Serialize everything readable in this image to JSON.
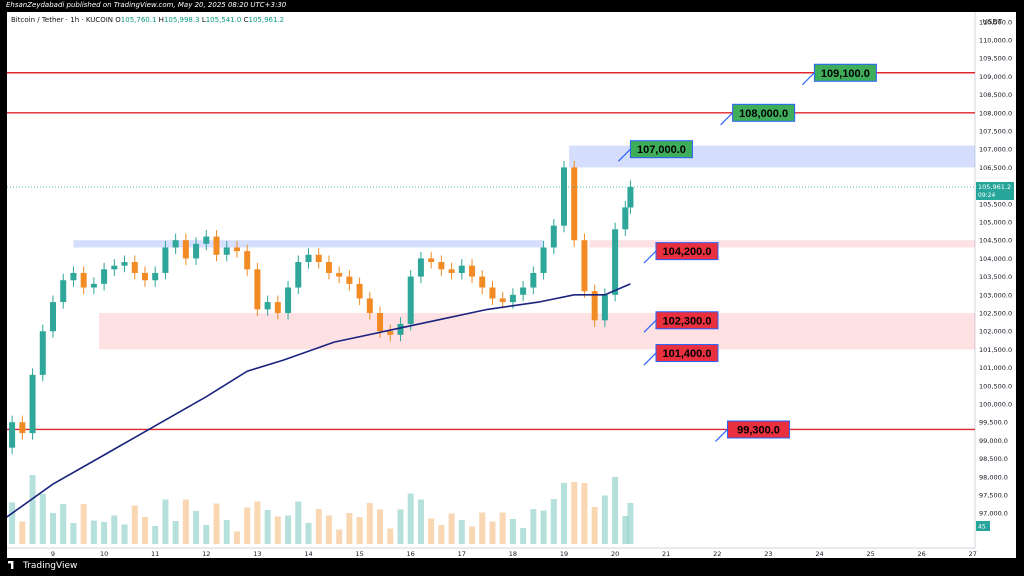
{
  "publisher": "EhsanZeydabadi published on TradingView.com, May 20, 2025 08:20 UTC+3:30",
  "symbol": {
    "name": "Bitcoin / Tether · 1h · KUCOIN",
    "open_label": "O",
    "open": "105,760.1",
    "high_label": "H",
    "high": "105,998.3",
    "low_label": "L",
    "low": "105,541.0",
    "close_label": "C",
    "close": "105,961.2"
  },
  "currency": "USDT",
  "footer": {
    "brand": "TradingView"
  },
  "colors": {
    "resistance_line": "#e0262f",
    "green_label": "#3fae5a",
    "red_label": "#e8303e",
    "label_border": "#2962ff",
    "ma_line": "#1a237e",
    "bull_candle": "#2ea69a",
    "bear_candle": "#f28b24",
    "blue_zone": "rgba(92,124,250,0.25)",
    "red_zone": "rgba(242,54,69,0.15)",
    "price_tag": "#26a69a"
  },
  "chart_data": {
    "type": "candlestick",
    "symbol": "BTCUSDT",
    "timeframe": "1h",
    "exchange": "KUCOIN",
    "y_axis": {
      "ylim": [
        97000,
        111000
      ],
      "ticks": [
        "97,000.0",
        "97,500.0",
        "98,000.0",
        "98,500.0",
        "99,000.0",
        "99,500.0",
        "100,000.0",
        "100,500.0",
        "101,000.0",
        "101,500.0",
        "102,000.0",
        "102,500.0",
        "103,000.0",
        "103,500.0",
        "104,000.0",
        "104,500.0",
        "105,000.0",
        "105,500.0",
        "106,000.0",
        "106,500.0",
        "107,000.0",
        "107,500.0",
        "108,000.0",
        "108,500.0",
        "109,000.0",
        "109,500.0",
        "110,000.0",
        "110,500.0"
      ]
    },
    "x_axis": {
      "ticks": [
        "9",
        "10",
        "11",
        "12",
        "13",
        "14",
        "15",
        "16",
        "17",
        "18",
        "19",
        "20",
        "21",
        "22",
        "23",
        "24",
        "25",
        "26",
        "27"
      ]
    },
    "last_price": {
      "value": "105,961.2",
      "countdown": "09:24"
    },
    "volume_tag": "45",
    "close_series": [
      [
        8.0,
        98800
      ],
      [
        8.2,
        99500
      ],
      [
        8.4,
        99200
      ],
      [
        8.6,
        100800
      ],
      [
        8.8,
        102000
      ],
      [
        9.0,
        102800
      ],
      [
        9.2,
        103400
      ],
      [
        9.4,
        103600
      ],
      [
        9.6,
        103200
      ],
      [
        9.8,
        103300
      ],
      [
        10.0,
        103700
      ],
      [
        10.2,
        103800
      ],
      [
        10.4,
        103900
      ],
      [
        10.6,
        103600
      ],
      [
        10.8,
        103400
      ],
      [
        11.0,
        103600
      ],
      [
        11.2,
        104300
      ],
      [
        11.4,
        104500
      ],
      [
        11.6,
        104000
      ],
      [
        11.8,
        104400
      ],
      [
        12.0,
        104600
      ],
      [
        12.2,
        104100
      ],
      [
        12.4,
        104300
      ],
      [
        12.6,
        104200
      ],
      [
        12.8,
        103700
      ],
      [
        13.0,
        102600
      ],
      [
        13.2,
        102800
      ],
      [
        13.4,
        102500
      ],
      [
        13.6,
        103200
      ],
      [
        13.8,
        103900
      ],
      [
        14.0,
        104100
      ],
      [
        14.2,
        103900
      ],
      [
        14.4,
        103600
      ],
      [
        14.6,
        103500
      ],
      [
        14.8,
        103300
      ],
      [
        15.0,
        102900
      ],
      [
        15.2,
        102500
      ],
      [
        15.4,
        102000
      ],
      [
        15.6,
        101900
      ],
      [
        15.8,
        102200
      ],
      [
        16.0,
        103500
      ],
      [
        16.2,
        104000
      ],
      [
        16.4,
        103900
      ],
      [
        16.6,
        103700
      ],
      [
        16.8,
        103600
      ],
      [
        17.0,
        103800
      ],
      [
        17.2,
        103500
      ],
      [
        17.4,
        103200
      ],
      [
        17.6,
        102900
      ],
      [
        17.8,
        102800
      ],
      [
        18.0,
        103000
      ],
      [
        18.2,
        103200
      ],
      [
        18.4,
        103600
      ],
      [
        18.6,
        104300
      ],
      [
        18.8,
        104900
      ],
      [
        19.0,
        106500
      ],
      [
        19.2,
        104500
      ],
      [
        19.4,
        103100
      ],
      [
        19.6,
        102300
      ],
      [
        19.8,
        103000
      ],
      [
        20.0,
        104800
      ],
      [
        20.2,
        105400
      ],
      [
        20.3,
        105961
      ]
    ],
    "moving_average": [
      [
        8.0,
        96800
      ],
      [
        9.0,
        97800
      ],
      [
        10.0,
        98600
      ],
      [
        11.0,
        99400
      ],
      [
        12.0,
        100200
      ],
      [
        12.8,
        100900
      ],
      [
        13.5,
        101200
      ],
      [
        14.5,
        101700
      ],
      [
        15.5,
        102000
      ],
      [
        16.5,
        102300
      ],
      [
        17.5,
        102600
      ],
      [
        18.5,
        102800
      ],
      [
        19.2,
        103000
      ],
      [
        19.8,
        103000
      ],
      [
        20.3,
        103300
      ]
    ],
    "horizontal_levels": [
      109100,
      108000,
      99300
    ],
    "zones": [
      {
        "color": "blue",
        "from_x": 19.1,
        "to_x": 27.5,
        "low": 106500,
        "high": 107100
      },
      {
        "color": "red",
        "from_x": 19.5,
        "to_x": 27.5,
        "low": 104300,
        "high": 104500
      },
      {
        "color": "red",
        "from_x": 9.9,
        "to_x": 27.5,
        "low": 101500,
        "high": 102500
      },
      {
        "color": "blue",
        "from_x": 9.4,
        "to_x": 18.6,
        "low": 104300,
        "high": 104500
      }
    ],
    "annotations": [
      {
        "text": "109,100.0",
        "value": 109100,
        "style": "green",
        "anchor_x": 23.9
      },
      {
        "text": "108,000.0",
        "value": 108000,
        "style": "green",
        "anchor_x": 22.3
      },
      {
        "text": "107,000.0",
        "value": 107000,
        "style": "green",
        "anchor_x": 20.3
      },
      {
        "text": "104,200.0",
        "value": 104200,
        "style": "red",
        "anchor_x": 20.8
      },
      {
        "text": "102,300.0",
        "value": 102300,
        "style": "red",
        "anchor_x": 20.8
      },
      {
        "text": "101,400.0",
        "value": 101400,
        "style": "red",
        "anchor_x": 20.8
      },
      {
        "text": "99,300.0",
        "value": 99300,
        "style": "red",
        "anchor_x": 22.2
      }
    ]
  }
}
